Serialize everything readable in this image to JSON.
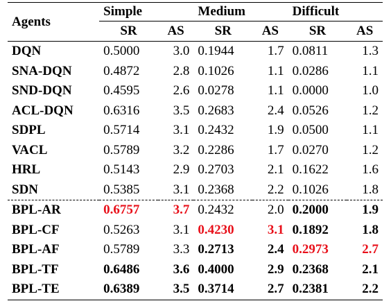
{
  "header": {
    "agents": "Agents",
    "groups": [
      "Simple",
      "Medium",
      "Difficult"
    ],
    "sub": [
      "SR",
      "AS",
      "SR",
      "AS",
      "SR",
      "AS"
    ]
  },
  "highlight_colors": {
    "best": "#e8101a"
  },
  "rows": [
    {
      "agent": "DQN",
      "values": [
        "0.5000",
        "3.0",
        "0.1944",
        "1.7",
        "0.0811",
        "1.3"
      ]
    },
    {
      "agent": "SNA-DQN",
      "values": [
        "0.4872",
        "2.8",
        "0.1026",
        "1.1",
        "0.0286",
        "1.1"
      ]
    },
    {
      "agent": "SND-DQN",
      "values": [
        "0.4595",
        "2.6",
        "0.0278",
        "1.1",
        "0.0000",
        "1.0"
      ]
    },
    {
      "agent": "ACL-DQN",
      "values": [
        "0.6316",
        "3.5",
        "0.2683",
        "2.4",
        "0.0526",
        "1.2"
      ]
    },
    {
      "agent": "SDPL",
      "values": [
        "0.5714",
        "3.1",
        "0.2432",
        "1.9",
        "0.0500",
        "1.1"
      ]
    },
    {
      "agent": "VACL",
      "values": [
        "0.5789",
        "3.2",
        "0.2286",
        "1.7",
        "0.0270",
        "1.2"
      ]
    },
    {
      "agent": "HRL",
      "values": [
        "0.5143",
        "2.9",
        "0.2703",
        "2.1",
        "0.1622",
        "1.6"
      ]
    },
    {
      "agent": "SDN",
      "values": [
        "0.5385",
        "3.1",
        "0.2368",
        "2.2",
        "0.1026",
        "1.8"
      ]
    },
    {
      "agent": "BPL-AR",
      "values": [
        "0.6757",
        "3.7",
        "0.2432",
        "2.0",
        "0.2000",
        "1.9"
      ]
    },
    {
      "agent": "BPL-CF",
      "values": [
        "0.5263",
        "3.1",
        "0.4230",
        "3.1",
        "0.1892",
        "1.8"
      ]
    },
    {
      "agent": "BPL-AF",
      "values": [
        "0.5789",
        "3.3",
        "0.2713",
        "2.4",
        "0.2973",
        "2.7"
      ]
    },
    {
      "agent": "BPL-TF",
      "values": [
        "0.6486",
        "3.6",
        "0.4000",
        "2.9",
        "0.2368",
        "2.1"
      ]
    },
    {
      "agent": "BPL-TE",
      "values": [
        "0.6389",
        "3.5",
        "0.3714",
        "2.7",
        "0.2381",
        "2.2"
      ]
    }
  ]
}
